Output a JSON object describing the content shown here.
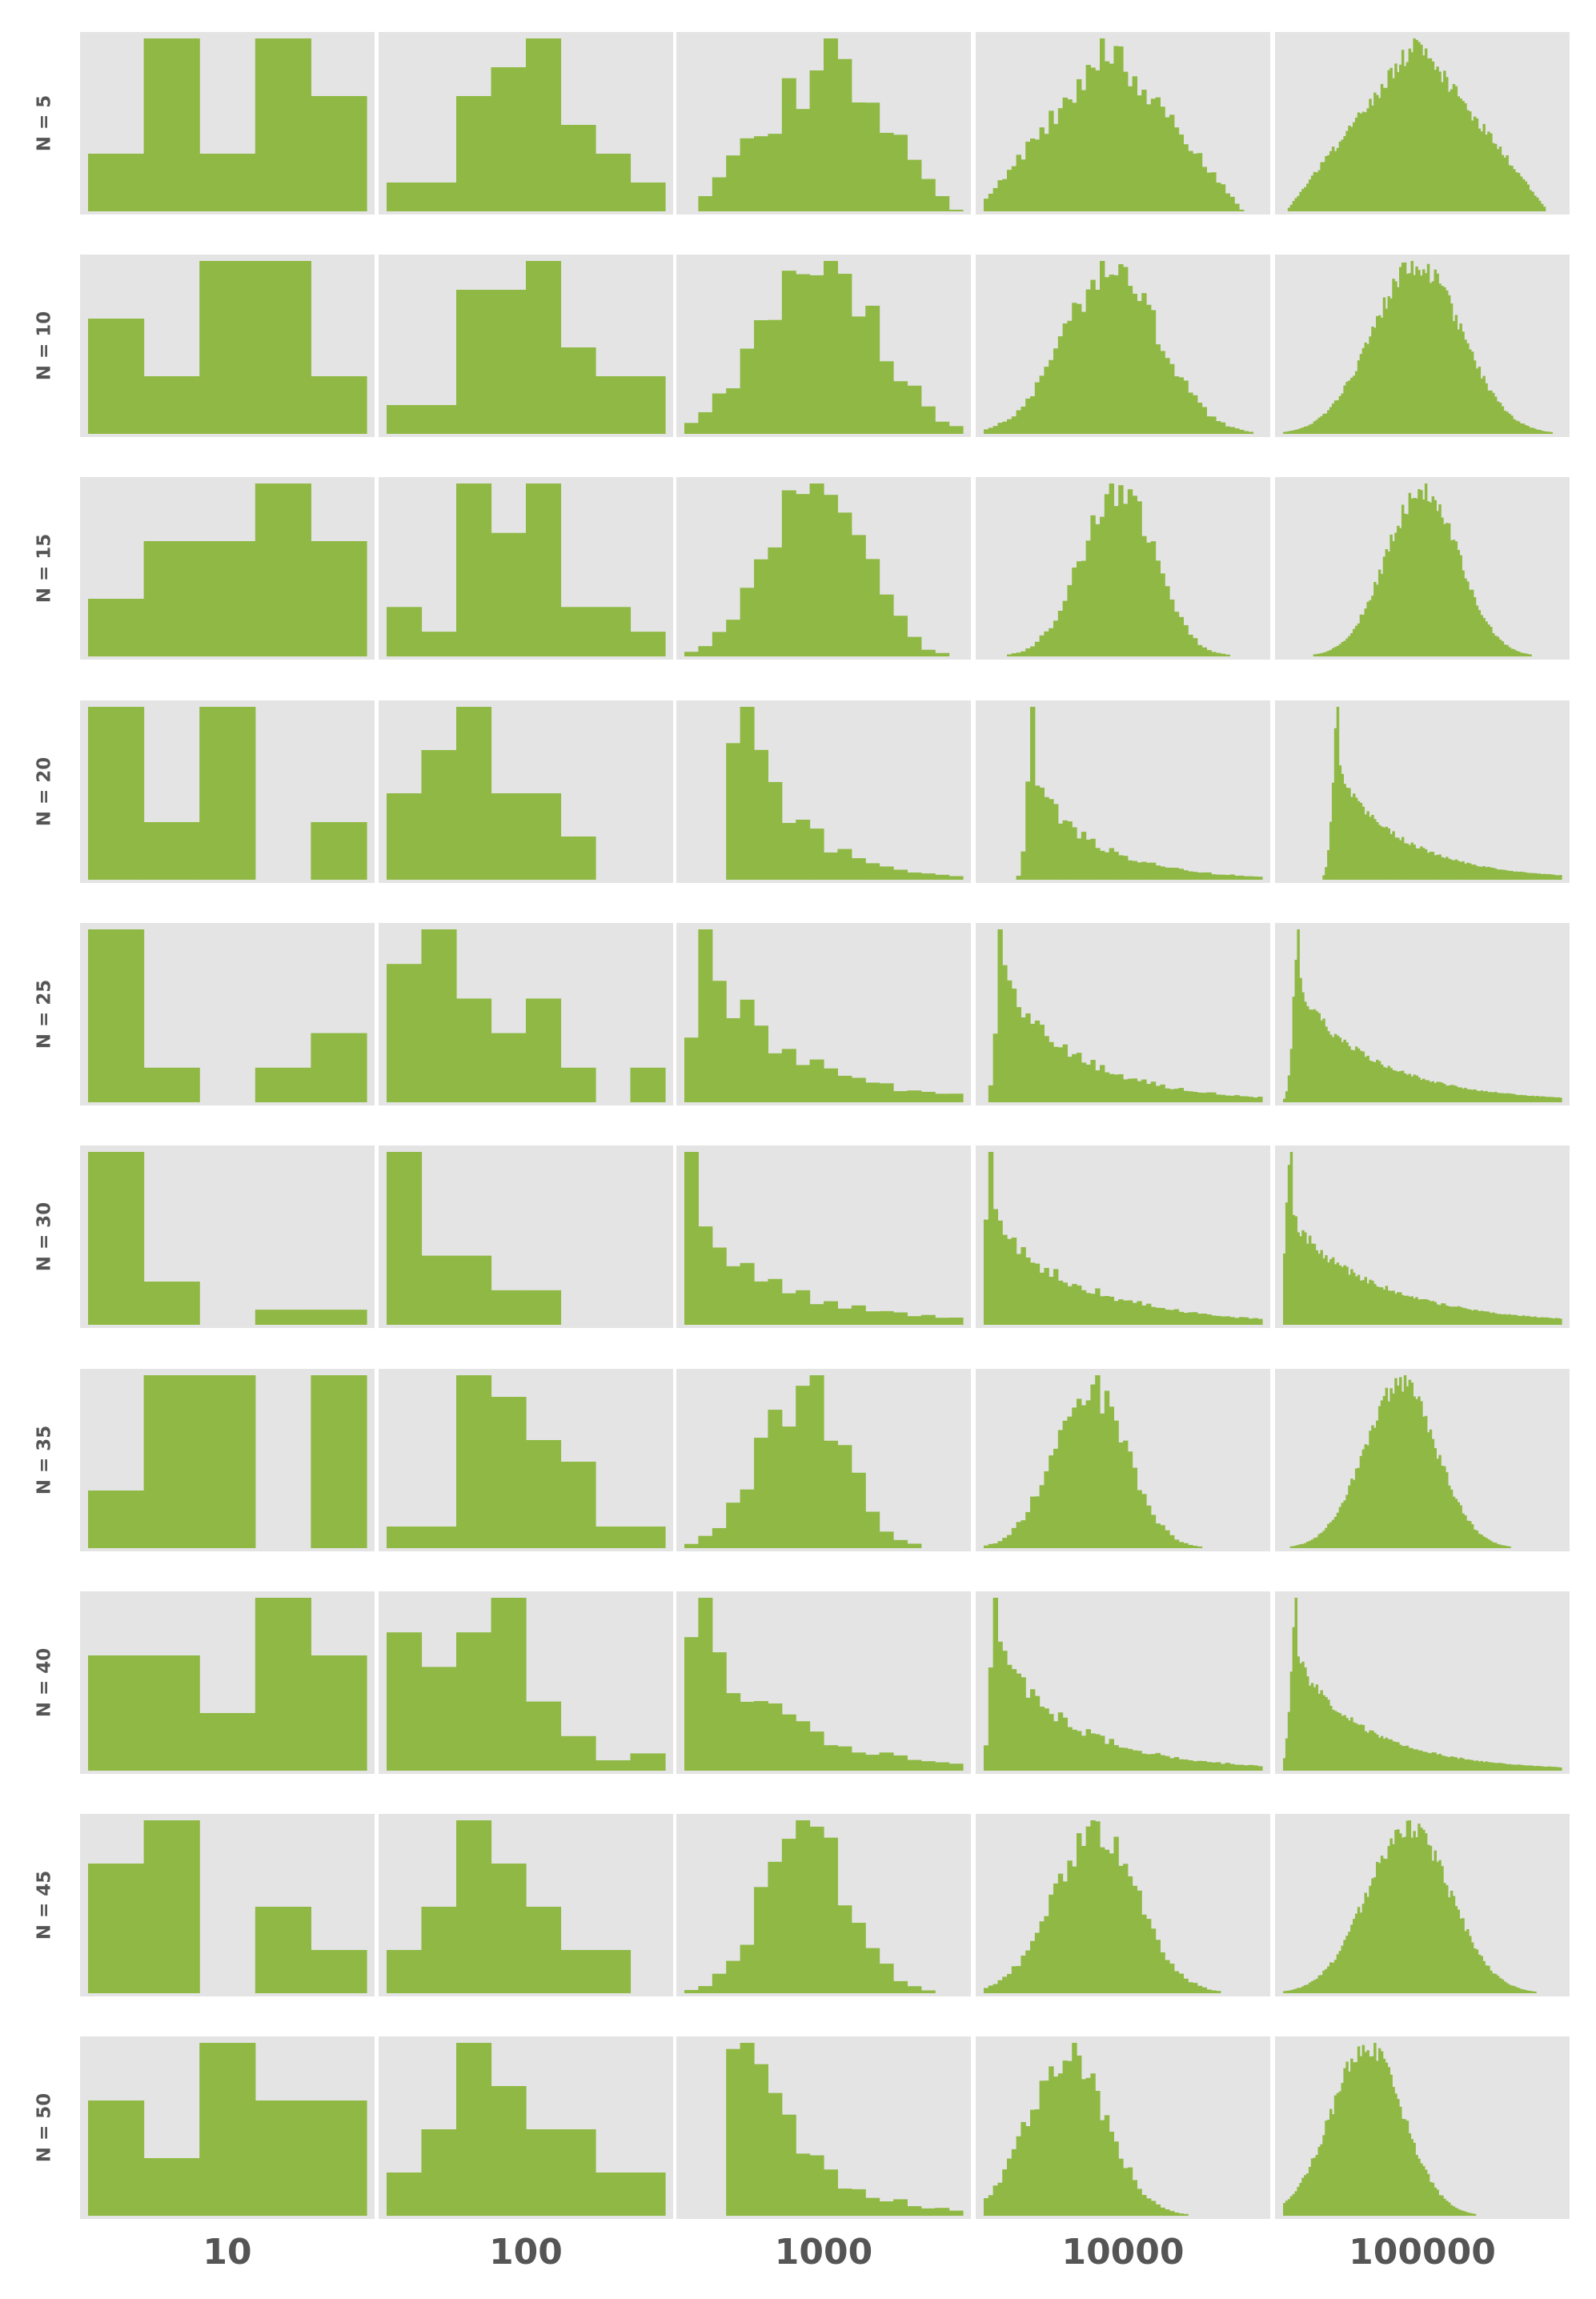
{
  "chart_data": {
    "type": "histogram-grid",
    "description_rows": "Rows are facets by N (number of draws); columns by sample size",
    "row_labels": [
      "N = 5",
      "N = 10",
      "N = 15",
      "N = 20",
      "N = 25",
      "N = 30",
      "N = 35",
      "N = 40",
      "N = 45",
      "N = 50"
    ],
    "col_labels": [
      "10",
      "100",
      "1000",
      "10000",
      "100000"
    ],
    "colors": {
      "bar": "#8fb944",
      "panel_bg": "#e4e4e4",
      "label": "#555555"
    },
    "bins": [
      5,
      8,
      20,
      60,
      120
    ],
    "panels": [
      [
        {
          "shape": "manual",
          "counts": [
            1,
            3,
            1,
            3,
            2
          ]
        },
        {
          "shape": "manual",
          "counts": [
            1,
            1,
            4,
            5,
            6,
            3,
            2,
            1
          ]
        },
        {
          "shape": "tri",
          "center": 0.5,
          "width": 0.48,
          "seed": 11
        },
        {
          "shape": "tri",
          "center": 0.45,
          "width": 0.48,
          "seed": 12
        },
        {
          "shape": "tri",
          "center": 0.48,
          "width": 0.47,
          "seed": 13
        }
      ],
      [
        {
          "shape": "manual",
          "counts": [
            2,
            1,
            3,
            3,
            1
          ]
        },
        {
          "shape": "manual",
          "counts": [
            1,
            1,
            5,
            5,
            6,
            3,
            2,
            2
          ]
        },
        {
          "shape": "normal",
          "center": 0.48,
          "width": 0.2,
          "seed": 21
        },
        {
          "shape": "normal",
          "center": 0.46,
          "width": 0.17,
          "seed": 22
        },
        {
          "shape": "normal",
          "center": 0.48,
          "width": 0.16,
          "seed": 23
        }
      ],
      [
        {
          "shape": "manual",
          "counts": [
            1,
            2,
            2,
            3,
            2
          ]
        },
        {
          "shape": "manual",
          "counts": [
            2,
            1,
            7,
            5,
            7,
            2,
            2,
            1
          ]
        },
        {
          "shape": "normal",
          "center": 0.47,
          "width": 0.16,
          "seed": 31
        },
        {
          "shape": "normal",
          "center": 0.48,
          "width": 0.13,
          "seed": 32
        },
        {
          "shape": "normal",
          "center": 0.5,
          "width": 0.13,
          "seed": 33
        }
      ],
      [
        {
          "shape": "manual",
          "counts": [
            3,
            1,
            3,
            0,
            1
          ]
        },
        {
          "shape": "manual",
          "counts": [
            2,
            3,
            4,
            2,
            2,
            1,
            0,
            0
          ]
        },
        {
          "shape": "skew",
          "center": 0.2,
          "width": 0.22,
          "seed": 41
        },
        {
          "shape": "skew",
          "center": 0.18,
          "width": 0.24,
          "seed": 42
        },
        {
          "shape": "skew",
          "center": 0.2,
          "width": 0.26,
          "seed": 43
        }
      ],
      [
        {
          "shape": "manual",
          "counts": [
            5,
            1,
            0,
            1,
            2
          ]
        },
        {
          "shape": "manual",
          "counts": [
            4,
            5,
            3,
            2,
            3,
            1,
            0,
            1
          ]
        },
        {
          "shape": "skew",
          "center": 0.06,
          "width": 0.3,
          "seed": 51
        },
        {
          "shape": "skew",
          "center": 0.07,
          "width": 0.3,
          "seed": 52
        },
        {
          "shape": "skew",
          "center": 0.06,
          "width": 0.3,
          "seed": 53
        }
      ],
      [
        {
          "shape": "manual",
          "counts": [
            4,
            1,
            0,
            0.35,
            0.35
          ]
        },
        {
          "shape": "manual",
          "counts": [
            5,
            2,
            2,
            1,
            1,
            0,
            0,
            0
          ]
        },
        {
          "shape": "skew",
          "center": 0.03,
          "width": 0.35,
          "seed": 61
        },
        {
          "shape": "skew",
          "center": 0.03,
          "width": 0.35,
          "seed": 62
        },
        {
          "shape": "skew",
          "center": 0.03,
          "width": 0.35,
          "seed": 63
        }
      ],
      [
        {
          "shape": "manual",
          "counts": [
            1,
            3,
            3,
            0,
            3
          ]
        },
        {
          "shape": "manual",
          "counts": [
            1,
            1,
            8,
            7,
            5,
            4,
            1,
            1
          ]
        },
        {
          "shape": "normal",
          "center": 0.42,
          "width": 0.15,
          "seed": 71
        },
        {
          "shape": "normal",
          "center": 0.38,
          "width": 0.13,
          "seed": 72
        },
        {
          "shape": "normal",
          "center": 0.42,
          "width": 0.13,
          "seed": 73
        }
      ],
      [
        {
          "shape": "manual",
          "counts": [
            2,
            2,
            1,
            3,
            2
          ]
        },
        {
          "shape": "manual",
          "counts": [
            4,
            3,
            4,
            5,
            2,
            1,
            0.3,
            0.5
          ]
        },
        {
          "shape": "skew",
          "center": 0.05,
          "width": 0.3,
          "seed": 81
        },
        {
          "shape": "skew",
          "center": 0.05,
          "width": 0.3,
          "seed": 82
        },
        {
          "shape": "skew",
          "center": 0.05,
          "width": 0.28,
          "seed": 83
        }
      ],
      [
        {
          "shape": "manual",
          "counts": [
            3,
            4,
            0,
            2,
            1
          ]
        },
        {
          "shape": "manual",
          "counts": [
            1,
            2,
            4,
            3,
            2,
            1,
            1,
            0
          ]
        },
        {
          "shape": "normal",
          "center": 0.44,
          "width": 0.15,
          "seed": 91
        },
        {
          "shape": "normal",
          "center": 0.4,
          "width": 0.15,
          "seed": 92
        },
        {
          "shape": "normal",
          "center": 0.45,
          "width": 0.15,
          "seed": 93
        }
      ],
      [
        {
          "shape": "manual",
          "counts": [
            2,
            1,
            3,
            2,
            2
          ]
        },
        {
          "shape": "manual",
          "counts": [
            1,
            2,
            4,
            3,
            2,
            2,
            1,
            1
          ]
        },
        {
          "shape": "skew",
          "center": 0.2,
          "width": 0.22,
          "seed": 101
        },
        {
          "shape": "normal",
          "center": 0.3,
          "width": 0.14,
          "seed": 102
        },
        {
          "shape": "normal",
          "center": 0.3,
          "width": 0.13,
          "seed": 103
        }
      ]
    ]
  }
}
